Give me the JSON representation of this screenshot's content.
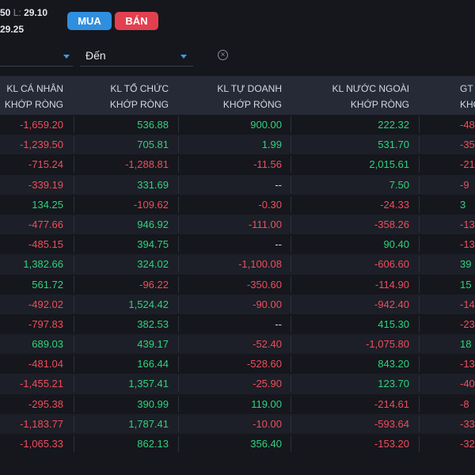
{
  "header": {
    "price_line_1_prefix": "50",
    "price_line_1_label": "L:",
    "price_line_1_value": "29.10",
    "price_line_2_value": "29.25",
    "buy_label": "MUA",
    "sell_label": "BÁN"
  },
  "filter": {
    "from_label": "",
    "to_label": "Đến"
  },
  "colors": {
    "positive": "#2fd37e",
    "negative": "#ef4d5c",
    "buy": "#2f8fde",
    "sell": "#e2404f",
    "header_bg": "#262a36"
  },
  "table": {
    "columns": [
      {
        "line1": "KL CÁ NHÂN",
        "line2": "KHỚP RÒNG"
      },
      {
        "line1": "KL TỔ CHỨC",
        "line2": "KHỚP RÒNG"
      },
      {
        "line1": "KL TỰ DOANH",
        "line2": "KHỚP RÒNG"
      },
      {
        "line1": "KL NƯỚC NGOÀI",
        "line2": "KHỚP RÒNG"
      },
      {
        "line1": "GT C",
        "line2": "KHỚ"
      }
    ],
    "rows": [
      [
        "-1,659.20",
        "536.88",
        "900.00",
        "222.32",
        "-48"
      ],
      [
        "-1,239.50",
        "705.81",
        "1.99",
        "531.70",
        "-35"
      ],
      [
        "-715.24",
        "-1,288.81",
        "-11.56",
        "2,015.61",
        "-21"
      ],
      [
        "-339.19",
        "331.69",
        "--",
        "7.50",
        "-9"
      ],
      [
        "134.25",
        "-109.62",
        "-0.30",
        "-24.33",
        "3"
      ],
      [
        "-477.66",
        "946.92",
        "-111.00",
        "-358.26",
        "-13"
      ],
      [
        "-485.15",
        "394.75",
        "--",
        "90.40",
        "-13"
      ],
      [
        "1,382.66",
        "324.02",
        "-1,100.08",
        "-606.60",
        "39"
      ],
      [
        "561.72",
        "-96.22",
        "-350.60",
        "-114.90",
        "15"
      ],
      [
        "-492.02",
        "1,524.42",
        "-90.00",
        "-942.40",
        "-14"
      ],
      [
        "-797.83",
        "382.53",
        "--",
        "415.30",
        "-23"
      ],
      [
        "689.03",
        "439.17",
        "-52.40",
        "-1,075.80",
        "18"
      ],
      [
        "-481.04",
        "166.44",
        "-528.60",
        "843.20",
        "-13"
      ],
      [
        "-1,455.21",
        "1,357.41",
        "-25.90",
        "123.70",
        "-40"
      ],
      [
        "-295.38",
        "390.99",
        "119.00",
        "-214.61",
        "-8"
      ],
      [
        "-1,183.77",
        "1,787.41",
        "-10.00",
        "-593.64",
        "-33"
      ],
      [
        "-1,065.33",
        "862.13",
        "356.40",
        "-153.20",
        "-32"
      ]
    ]
  }
}
